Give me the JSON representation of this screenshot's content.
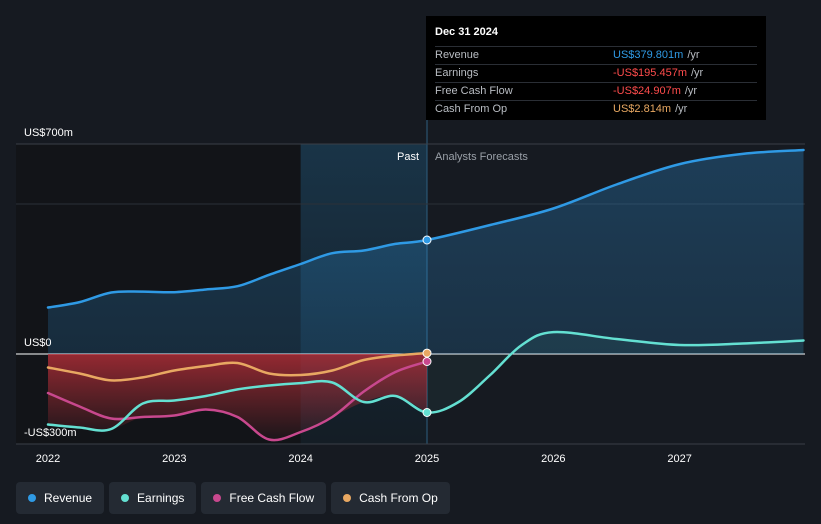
{
  "colors": {
    "revenue": "#2f9ae5",
    "earnings": "#64e0d2",
    "free_cash_flow": "#c8488e",
    "cash_from_op": "#e8a862"
  },
  "tooltip": {
    "date": "Dec 31 2024",
    "rows": [
      {
        "label": "Revenue",
        "value": "US$379.801m",
        "unit": "/yr",
        "color": "#2f9ae5"
      },
      {
        "label": "Earnings",
        "value": "-US$195.457m",
        "unit": "/yr",
        "color": "#ff4c4c"
      },
      {
        "label": "Free Cash Flow",
        "value": "-US$24.907m",
        "unit": "/yr",
        "color": "#ff4c4c"
      },
      {
        "label": "Cash From Op",
        "value": "US$2.814m",
        "unit": "/yr",
        "color": "#e8a862"
      }
    ]
  },
  "legend": [
    {
      "label": "Revenue",
      "color": "#2f9ae5"
    },
    {
      "label": "Earnings",
      "color": "#64e0d2"
    },
    {
      "label": "Free Cash Flow",
      "color": "#c8488e"
    },
    {
      "label": "Cash From Op",
      "color": "#e8a862"
    }
  ],
  "chart_data": {
    "type": "line",
    "title": "",
    "xlabel": "",
    "ylabel": "",
    "xlim": [
      2021.75,
      2027.98
    ],
    "ylim": [
      -300,
      700
    ],
    "x_ticks": [
      "2022",
      "2023",
      "2024",
      "2025",
      "2026",
      "2027"
    ],
    "y_labels": {
      "top": "US$700m",
      "zero": "US$0",
      "bottom": "-US$300m"
    },
    "past_label": "Past",
    "forecast_label": "Analysts Forecasts",
    "past_end": 2025.0,
    "highlight_start": 2024.0,
    "series": [
      {
        "name": "Revenue",
        "color": "#2f9ae5",
        "x": [
          2022.0,
          2022.25,
          2022.5,
          2022.75,
          2023.0,
          2023.25,
          2023.5,
          2023.75,
          2024.0,
          2024.25,
          2024.5,
          2024.75,
          2025.0,
          2025.5,
          2026.0,
          2026.5,
          2027.0,
          2027.5,
          2027.98
        ],
        "values": [
          155,
          173,
          205,
          208,
          206,
          215,
          226,
          264,
          300,
          336,
          345,
          367,
          380,
          430,
          485,
          565,
          633,
          667,
          680
        ]
      },
      {
        "name": "Earnings",
        "color": "#64e0d2",
        "x": [
          2022.0,
          2022.25,
          2022.5,
          2022.75,
          2023.0,
          2023.25,
          2023.5,
          2023.75,
          2024.0,
          2024.25,
          2024.5,
          2024.75,
          2025.0,
          2025.25,
          2025.5,
          2025.75,
          2026.0,
          2026.5,
          2027.0,
          2027.5,
          2027.98
        ],
        "values": [
          -235,
          -245,
          -250,
          -165,
          -155,
          -140,
          -118,
          -105,
          -97,
          -95,
          -160,
          -140,
          -195,
          -160,
          -70,
          30,
          73,
          50,
          30,
          35,
          45
        ]
      },
      {
        "name": "Free Cash Flow",
        "color": "#c8488e",
        "x": [
          2022.0,
          2022.25,
          2022.5,
          2022.75,
          2023.0,
          2023.25,
          2023.5,
          2023.75,
          2024.0,
          2024.25,
          2024.5,
          2024.75,
          2025.0
        ],
        "values": [
          -130,
          -175,
          -215,
          -210,
          -205,
          -185,
          -210,
          -285,
          -260,
          -210,
          -125,
          -60,
          -25
        ]
      },
      {
        "name": "Cash From Op",
        "color": "#e8a862",
        "x": [
          2022.0,
          2022.25,
          2022.5,
          2022.75,
          2023.0,
          2023.25,
          2023.5,
          2023.75,
          2024.0,
          2024.25,
          2024.5,
          2024.75,
          2025.0
        ],
        "values": [
          -45,
          -65,
          -88,
          -78,
          -55,
          -40,
          -30,
          -65,
          -70,
          -55,
          -20,
          -5,
          3
        ]
      }
    ]
  }
}
